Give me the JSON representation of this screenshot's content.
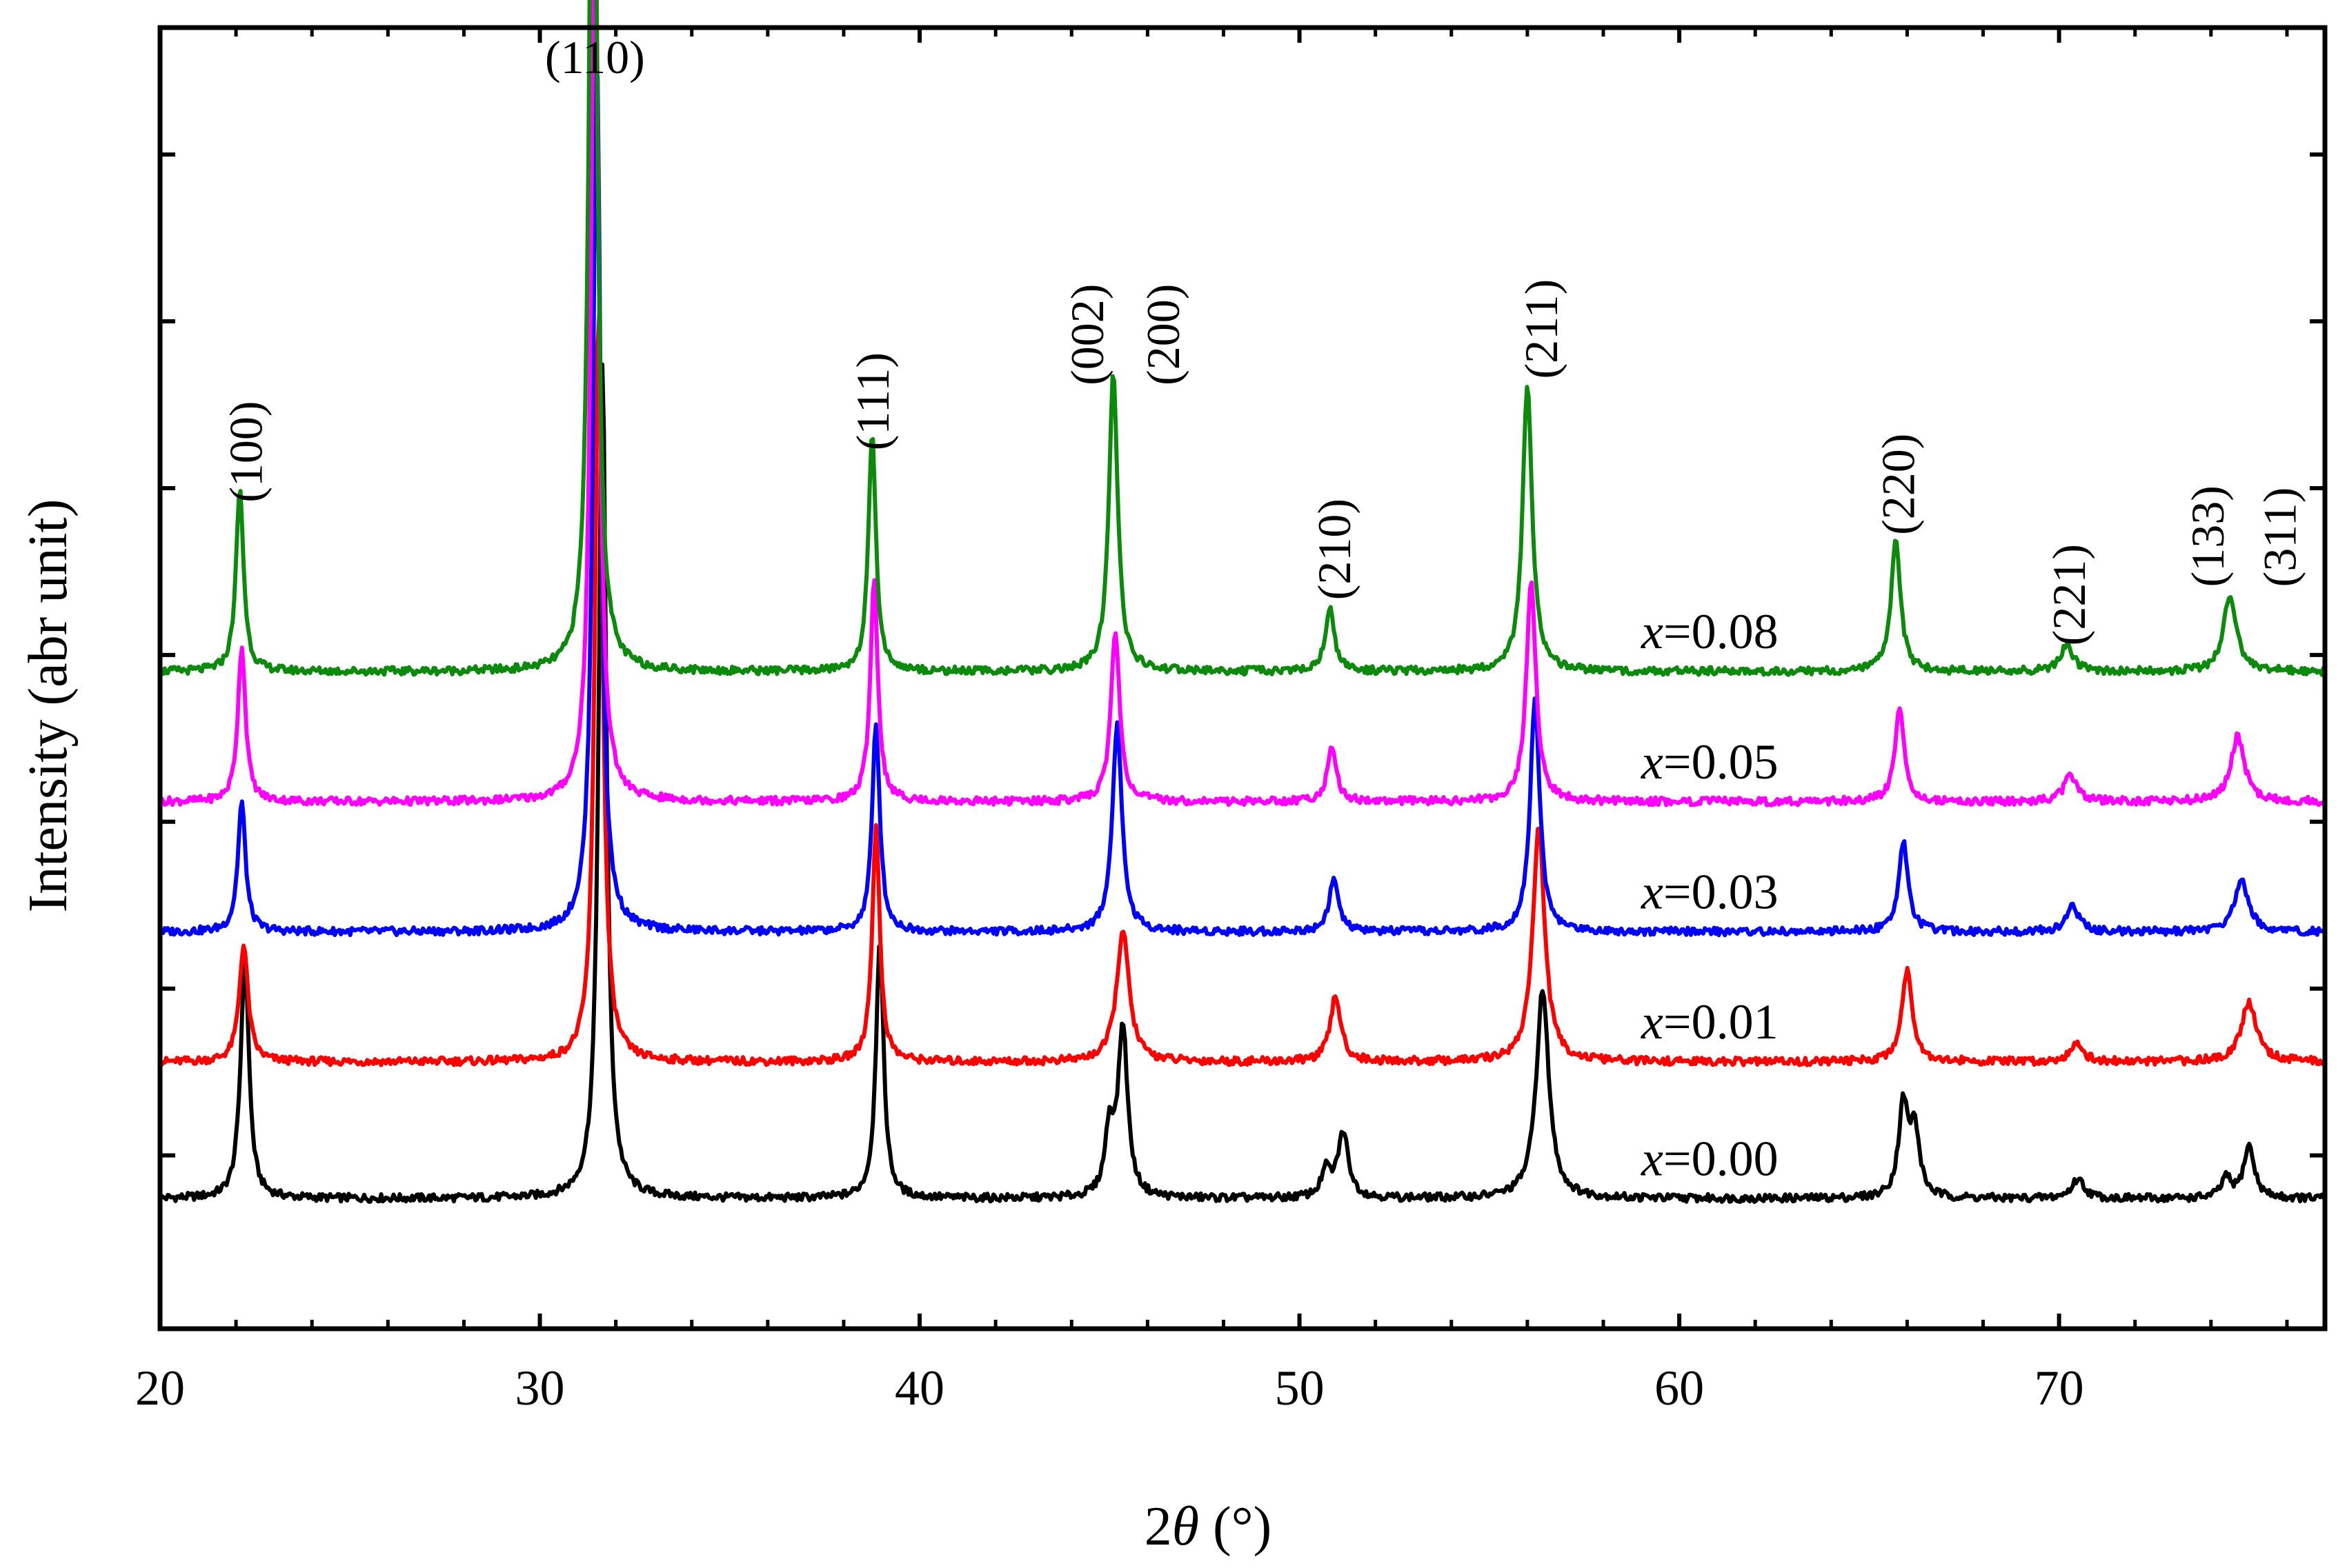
{
  "chart_data": {
    "type": "line",
    "title": "",
    "xlabel_prefix": "2",
    "xlabel_symbol": "θ",
    "xlabel_suffix": " (°)",
    "ylabel": "Intensity (abr unit)",
    "xlim": [
      20,
      77
    ],
    "ylim": [
      0,
      1
    ],
    "x_ticks": [
      20,
      30,
      40,
      50,
      60,
      70
    ],
    "x_tick_labels": [
      "20",
      "30",
      "40",
      "50",
      "60",
      "70"
    ],
    "series": [
      {
        "name": "x=0.00",
        "var": "x",
        "value_text": "=0.00",
        "color": "#000000",
        "baseline": 0.1,
        "peaks": [
          [
            22.2,
            0.07,
            0.14
          ],
          [
            22.25,
            0.12,
            0.12
          ],
          [
            31.65,
            0.64,
            0.12
          ],
          [
            38.95,
            0.2,
            0.12
          ],
          [
            45.0,
            0.05,
            0.14
          ],
          [
            45.35,
            0.13,
            0.15
          ],
          [
            50.7,
            0.02,
            0.15
          ],
          [
            51.15,
            0.05,
            0.17
          ],
          [
            56.4,
            0.16,
            0.2
          ],
          [
            65.9,
            0.07,
            0.15
          ],
          [
            66.2,
            0.05,
            0.15
          ],
          [
            70.5,
            0.015,
            0.2
          ],
          [
            74.4,
            0.015,
            0.15
          ],
          [
            75.0,
            0.04,
            0.17
          ]
        ]
      },
      {
        "name": "x=0.01",
        "var": "x",
        "value_text": "=0.01",
        "color": "#ff0000",
        "baseline": 0.205,
        "peaks": [
          [
            22.2,
            0.09,
            0.14
          ],
          [
            31.55,
            0.58,
            0.12
          ],
          [
            38.85,
            0.18,
            0.12
          ],
          [
            45.35,
            0.1,
            0.2
          ],
          [
            50.95,
            0.05,
            0.17
          ],
          [
            56.3,
            0.18,
            0.19
          ],
          [
            66.0,
            0.07,
            0.17
          ],
          [
            70.45,
            0.015,
            0.2
          ],
          [
            75.0,
            0.045,
            0.25
          ]
        ]
      },
      {
        "name": "x=0.03",
        "var": "x",
        "value_text": "=0.03",
        "color": "#0000ff",
        "baseline": 0.305,
        "peaks": [
          [
            22.15,
            0.1,
            0.12
          ],
          [
            31.5,
            0.68,
            0.12
          ],
          [
            38.85,
            0.16,
            0.12
          ],
          [
            45.2,
            0.16,
            0.15
          ],
          [
            50.9,
            0.04,
            0.15
          ],
          [
            56.2,
            0.18,
            0.15
          ],
          [
            65.9,
            0.07,
            0.15
          ],
          [
            70.35,
            0.02,
            0.2
          ],
          [
            74.8,
            0.04,
            0.22
          ]
        ]
      },
      {
        "name": "x=0.05",
        "var": "x",
        "value_text": "=0.05",
        "color": "#ff00ff",
        "baseline": 0.405,
        "peaks": [
          [
            22.15,
            0.12,
            0.12
          ],
          [
            31.45,
            0.72,
            0.12
          ],
          [
            38.8,
            0.17,
            0.12
          ],
          [
            45.15,
            0.13,
            0.14
          ],
          [
            50.85,
            0.04,
            0.15
          ],
          [
            56.1,
            0.17,
            0.15
          ],
          [
            65.8,
            0.07,
            0.15
          ],
          [
            70.3,
            0.02,
            0.2
          ],
          [
            74.7,
            0.05,
            0.22
          ]
        ]
      },
      {
        "name": "x=0.08",
        "var": "x",
        "value_text": "=0.08",
        "color": "#0b8a0b",
        "baseline": 0.505,
        "peaks": [
          [
            22.1,
            0.14,
            0.12
          ],
          [
            31.4,
            0.8,
            0.12
          ],
          [
            38.75,
            0.18,
            0.12
          ],
          [
            45.1,
            0.23,
            0.14
          ],
          [
            50.8,
            0.05,
            0.14
          ],
          [
            56.0,
            0.22,
            0.15
          ],
          [
            65.7,
            0.1,
            0.15
          ],
          [
            70.2,
            0.02,
            0.2
          ],
          [
            74.5,
            0.06,
            0.2
          ]
        ]
      }
    ],
    "peak_annotations": [
      {
        "text": "(100)",
        "x": 22.25,
        "y": 0.635,
        "rotated": true
      },
      {
        "text": "(110)",
        "x": 31.45,
        "y": 0.965,
        "rotated": false
      },
      {
        "text": "(111)",
        "x": 38.75,
        "y": 0.675,
        "rotated": true
      },
      {
        "text": "(002)",
        "x": 44.4,
        "y": 0.725,
        "rotated": true
      },
      {
        "text": "(200)",
        "x": 46.4,
        "y": 0.725,
        "rotated": true
      },
      {
        "text": "(210)",
        "x": 50.9,
        "y": 0.56,
        "rotated": true
      },
      {
        "text": "(211)",
        "x": 56.35,
        "y": 0.73,
        "rotated": true
      },
      {
        "text": "(220)",
        "x": 65.75,
        "y": 0.61,
        "rotated": true
      },
      {
        "text": "(221)",
        "x": 70.25,
        "y": 0.525,
        "rotated": true
      },
      {
        "text": "(133)",
        "x": 73.9,
        "y": 0.57,
        "rotated": true
      },
      {
        "text": "(311)",
        "x": 75.8,
        "y": 0.57,
        "rotated": true
      }
    ],
    "series_label_x": 59.0,
    "series_label_offset": 0.018
  }
}
